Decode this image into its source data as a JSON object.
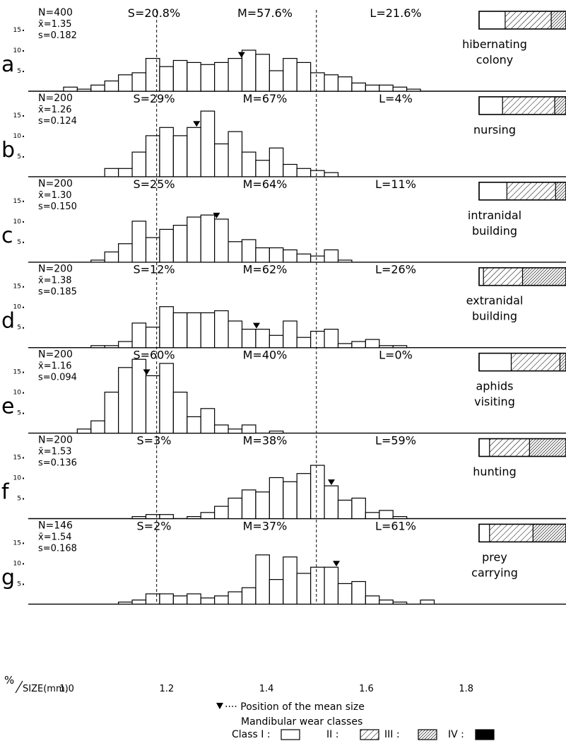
{
  "chart_data": {
    "type": "bar",
    "x_axis": {
      "label": "SIZE(mm)",
      "percent_symbol": "%",
      "tick_labels": [
        "1.0",
        "1.2",
        "1.4",
        "1.6",
        "1.8"
      ],
      "tick_values": [
        1.0,
        1.2,
        1.4,
        1.6,
        1.8
      ],
      "range": [
        0.92,
        2.0
      ],
      "bin_width": 0.0275,
      "bin_start": 0.966
    },
    "y_axis": {
      "tick_labels": [
        "15",
        "10",
        "5"
      ],
      "tick_values": [
        15,
        10,
        5
      ],
      "range": [
        0,
        18
      ]
    },
    "class_boundaries": [
      1.18,
      1.5
    ],
    "legend": {
      "mean_marker_text": "Position of the mean size",
      "title": "Mandibular wear classes",
      "class_labels": [
        "Class I :",
        "II :",
        "III :",
        "IV :"
      ]
    },
    "panels": [
      {
        "letter": "a",
        "name_lines": [
          "hibernating",
          "colony"
        ],
        "n": "N=400",
        "mean": "x̄=1.35",
        "sd": "s=0.182",
        "mean_value": 1.35,
        "s_pct": "S=20.8%",
        "m_pct": "M=57.6%",
        "l_pct": "L=21.6%",
        "wear_classes": [
          0.3,
          0.53,
          0.17,
          0.0
        ],
        "values": [
          0,
          1,
          0.5,
          1.5,
          2.5,
          4,
          4.5,
          8,
          6,
          7.5,
          7,
          6.5,
          7,
          8,
          10,
          9,
          5,
          8,
          7,
          4.5,
          4,
          3.5,
          2,
          1.5,
          1.5,
          1,
          0.5,
          0,
          0,
          0,
          0,
          0,
          0,
          0
        ]
      },
      {
        "letter": "b",
        "name_lines": [
          "nursing"
        ],
        "n": "N=200",
        "mean": "x̄=1.26",
        "sd": "s=0.124",
        "mean_value": 1.26,
        "s_pct": "S=29%",
        "m_pct": "M=67%",
        "l_pct": "L=4%",
        "wear_classes": [
          0.27,
          0.6,
          0.13,
          0.0
        ],
        "values": [
          0,
          0,
          0,
          0,
          2,
          2,
          6,
          10,
          12,
          10,
          12,
          16,
          8,
          11,
          6,
          4,
          7,
          3,
          2,
          1.5,
          1,
          0,
          0,
          0,
          0,
          0,
          0,
          0,
          0,
          0,
          0,
          0,
          0,
          0
        ]
      },
      {
        "letter": "c",
        "name_lines": [
          "intranidal",
          "building"
        ],
        "n": "N=200",
        "mean": "x̄=1.30",
        "sd": "s=0.150",
        "mean_value": 1.3,
        "s_pct": "S=25%",
        "m_pct": "M=64%",
        "l_pct": "L=11%",
        "wear_classes": [
          0.32,
          0.56,
          0.12,
          0.0
        ],
        "values": [
          0,
          0,
          0,
          0.5,
          2.5,
          4.5,
          10,
          6,
          8,
          9,
          11,
          11.5,
          10.5,
          5,
          5.5,
          3.5,
          3.5,
          3,
          2,
          1.5,
          3,
          0.5,
          0,
          0,
          0,
          0,
          0,
          0,
          0,
          0,
          0,
          0,
          0,
          0
        ]
      },
      {
        "letter": "d",
        "name_lines": [
          "extranidal",
          "building"
        ],
        "n": "N=200",
        "mean": "x̄=1.38",
        "sd": "s=0.185",
        "mean_value": 1.38,
        "s_pct": "S=12%",
        "m_pct": "M=62%",
        "l_pct": "L=26%",
        "wear_classes": [
          0.05,
          0.45,
          0.5,
          0.0
        ],
        "values": [
          0,
          0,
          0,
          0.5,
          0.5,
          1.5,
          6,
          5,
          10,
          8.5,
          8.5,
          8.5,
          9,
          6.5,
          4.5,
          4.5,
          3,
          6.5,
          2.5,
          4,
          4.5,
          1,
          1.5,
          2,
          0.5,
          0.5,
          0,
          0,
          0,
          0,
          0,
          0,
          0,
          0
        ]
      },
      {
        "letter": "e",
        "name_lines": [
          "aphids",
          "visiting"
        ],
        "n": "N=200",
        "mean": "x̄=1.16",
        "sd": "s=0.094",
        "mean_value": 1.16,
        "s_pct": "S=60%",
        "m_pct": "M=40%",
        "l_pct": "L=0%",
        "wear_classes": [
          0.37,
          0.56,
          0.07,
          0.0
        ],
        "values": [
          0,
          0,
          1,
          3,
          10,
          16,
          18,
          14,
          17,
          10,
          4,
          6,
          2,
          1,
          2,
          0,
          0.5,
          0,
          0,
          0,
          0,
          0,
          0,
          0,
          0,
          0,
          0,
          0,
          0,
          0,
          0,
          0,
          0,
          0
        ]
      },
      {
        "letter": "f",
        "name_lines": [
          "hunting"
        ],
        "n": "N=200",
        "mean": "x̄=1.53",
        "sd": "s=0.136",
        "mean_value": 1.53,
        "s_pct": "S=3%",
        "m_pct": "M=38%",
        "l_pct": "L=59%",
        "wear_classes": [
          0.12,
          0.46,
          0.42,
          0.0
        ],
        "values": [
          0,
          0,
          0,
          0,
          0,
          0,
          0.5,
          1,
          1,
          0,
          0.5,
          1.5,
          3,
          5,
          7,
          6.5,
          10,
          9,
          11,
          13,
          8,
          4.5,
          5,
          1.5,
          2,
          0.5,
          0,
          0,
          0,
          0,
          0,
          0,
          0,
          0
        ]
      },
      {
        "letter": "g",
        "name_lines": [
          "prey",
          "carrying"
        ],
        "n": "N=146",
        "mean": "x̄=1.54",
        "sd": "s=0.168",
        "mean_value": 1.54,
        "s_pct": "S=2%",
        "m_pct": "M=37%",
        "l_pct": "L=61%",
        "wear_classes": [
          0.12,
          0.5,
          0.38,
          0.0
        ],
        "values": [
          0,
          0,
          0,
          0,
          0,
          0.5,
          1,
          2.5,
          2.5,
          2,
          2.5,
          1.5,
          2,
          3,
          4,
          12,
          6,
          11.5,
          7.5,
          9,
          9,
          5,
          5.5,
          2,
          1,
          0.5,
          0,
          1,
          0,
          0,
          0,
          0,
          0,
          0
        ]
      }
    ]
  }
}
